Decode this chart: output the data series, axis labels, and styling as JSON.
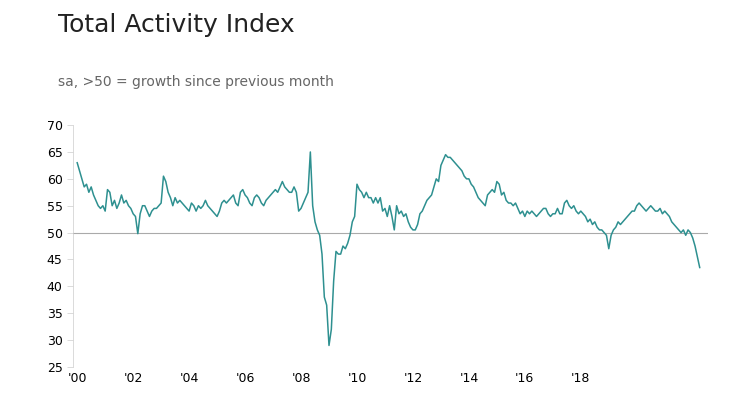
{
  "title": "Total Activity Index",
  "subtitle": "sa, >50 = growth since previous month",
  "line_color": "#2e9090",
  "reference_line": 50,
  "reference_line_color": "#aaaaaa",
  "background_color": "#ffffff",
  "ylim": [
    25,
    70
  ],
  "yticks": [
    25,
    30,
    35,
    40,
    45,
    50,
    55,
    60,
    65,
    70
  ],
  "xtick_positions": [
    2000,
    2002,
    2004,
    2006,
    2008,
    2010,
    2012,
    2014,
    2016,
    2018
  ],
  "xtick_labels": [
    "'00",
    "'02",
    "'04",
    "'06",
    "'08",
    "'10",
    "'12",
    "'14",
    "'16",
    "'18"
  ],
  "title_fontsize": 18,
  "subtitle_fontsize": 10,
  "values": [
    63.0,
    61.5,
    60.0,
    58.5,
    59.0,
    57.5,
    58.5,
    57.0,
    56.0,
    55.0,
    54.5,
    55.0,
    54.0,
    58.0,
    57.5,
    55.0,
    56.0,
    54.5,
    55.5,
    57.0,
    55.5,
    56.0,
    55.0,
    54.5,
    53.5,
    53.0,
    49.8,
    53.5,
    55.0,
    55.0,
    54.0,
    53.0,
    54.0,
    54.5,
    54.5,
    55.0,
    55.5,
    60.5,
    59.5,
    57.5,
    56.5,
    55.0,
    56.5,
    55.5,
    56.0,
    55.5,
    55.0,
    54.5,
    54.0,
    55.5,
    55.0,
    54.0,
    55.0,
    54.5,
    55.0,
    56.0,
    55.0,
    54.5,
    54.0,
    53.5,
    53.0,
    54.0,
    55.5,
    56.0,
    55.5,
    56.0,
    56.5,
    57.0,
    55.5,
    55.0,
    57.5,
    58.0,
    57.0,
    56.5,
    55.5,
    55.0,
    56.5,
    57.0,
    56.5,
    55.5,
    55.0,
    56.0,
    56.5,
    57.0,
    57.5,
    58.0,
    57.5,
    58.5,
    59.5,
    58.5,
    58.0,
    57.5,
    57.5,
    58.5,
    57.5,
    54.0,
    54.5,
    55.5,
    56.5,
    57.5,
    65.0,
    55.0,
    52.0,
    50.5,
    49.5,
    46.0,
    38.0,
    36.5,
    29.0,
    32.0,
    41.0,
    46.5,
    46.0,
    46.0,
    47.5,
    47.0,
    48.0,
    49.5,
    52.0,
    53.0,
    59.0,
    58.0,
    57.5,
    56.5,
    57.5,
    56.5,
    56.5,
    55.5,
    56.5,
    55.5,
    56.5,
    54.0,
    54.5,
    53.0,
    55.0,
    53.0,
    50.5,
    55.0,
    53.5,
    54.0,
    53.0,
    53.5,
    52.0,
    51.0,
    50.5,
    50.5,
    51.5,
    53.5,
    54.0,
    55.0,
    56.0,
    56.5,
    57.0,
    58.5,
    60.0,
    59.5,
    62.5,
    63.5,
    64.5,
    64.0,
    64.0,
    63.5,
    63.0,
    62.5,
    62.0,
    61.5,
    60.5,
    60.0,
    60.0,
    59.0,
    58.5,
    57.5,
    56.5,
    56.0,
    55.5,
    55.0,
    57.0,
    57.5,
    58.0,
    57.5,
    59.5,
    59.0,
    57.0,
    57.5,
    56.0,
    55.5,
    55.5,
    55.0,
    55.5,
    54.5,
    53.5,
    54.0,
    53.0,
    54.0,
    53.5,
    54.0,
    53.5,
    53.0,
    53.5,
    54.0,
    54.5,
    54.5,
    53.5,
    53.0,
    53.5,
    53.5,
    54.5,
    53.5,
    53.5,
    55.5,
    56.0,
    55.0,
    54.5,
    55.0,
    54.0,
    53.5,
    54.0,
    53.5,
    53.0,
    52.0,
    52.5,
    51.5,
    52.0,
    51.0,
    50.5,
    50.5,
    50.0,
    49.5,
    47.0,
    49.5,
    50.5,
    51.0,
    52.0,
    51.5,
    52.0,
    52.5,
    53.0,
    53.5,
    54.0,
    54.0,
    55.0,
    55.5,
    55.0,
    54.5,
    54.0,
    54.5,
    55.0,
    54.5,
    54.0,
    54.0,
    54.5,
    53.5,
    54.0,
    53.5,
    53.0,
    52.0,
    51.5,
    51.0,
    50.5,
    50.0,
    50.5,
    49.5,
    50.5,
    50.0,
    49.0,
    47.5,
    45.5,
    43.5
  ]
}
